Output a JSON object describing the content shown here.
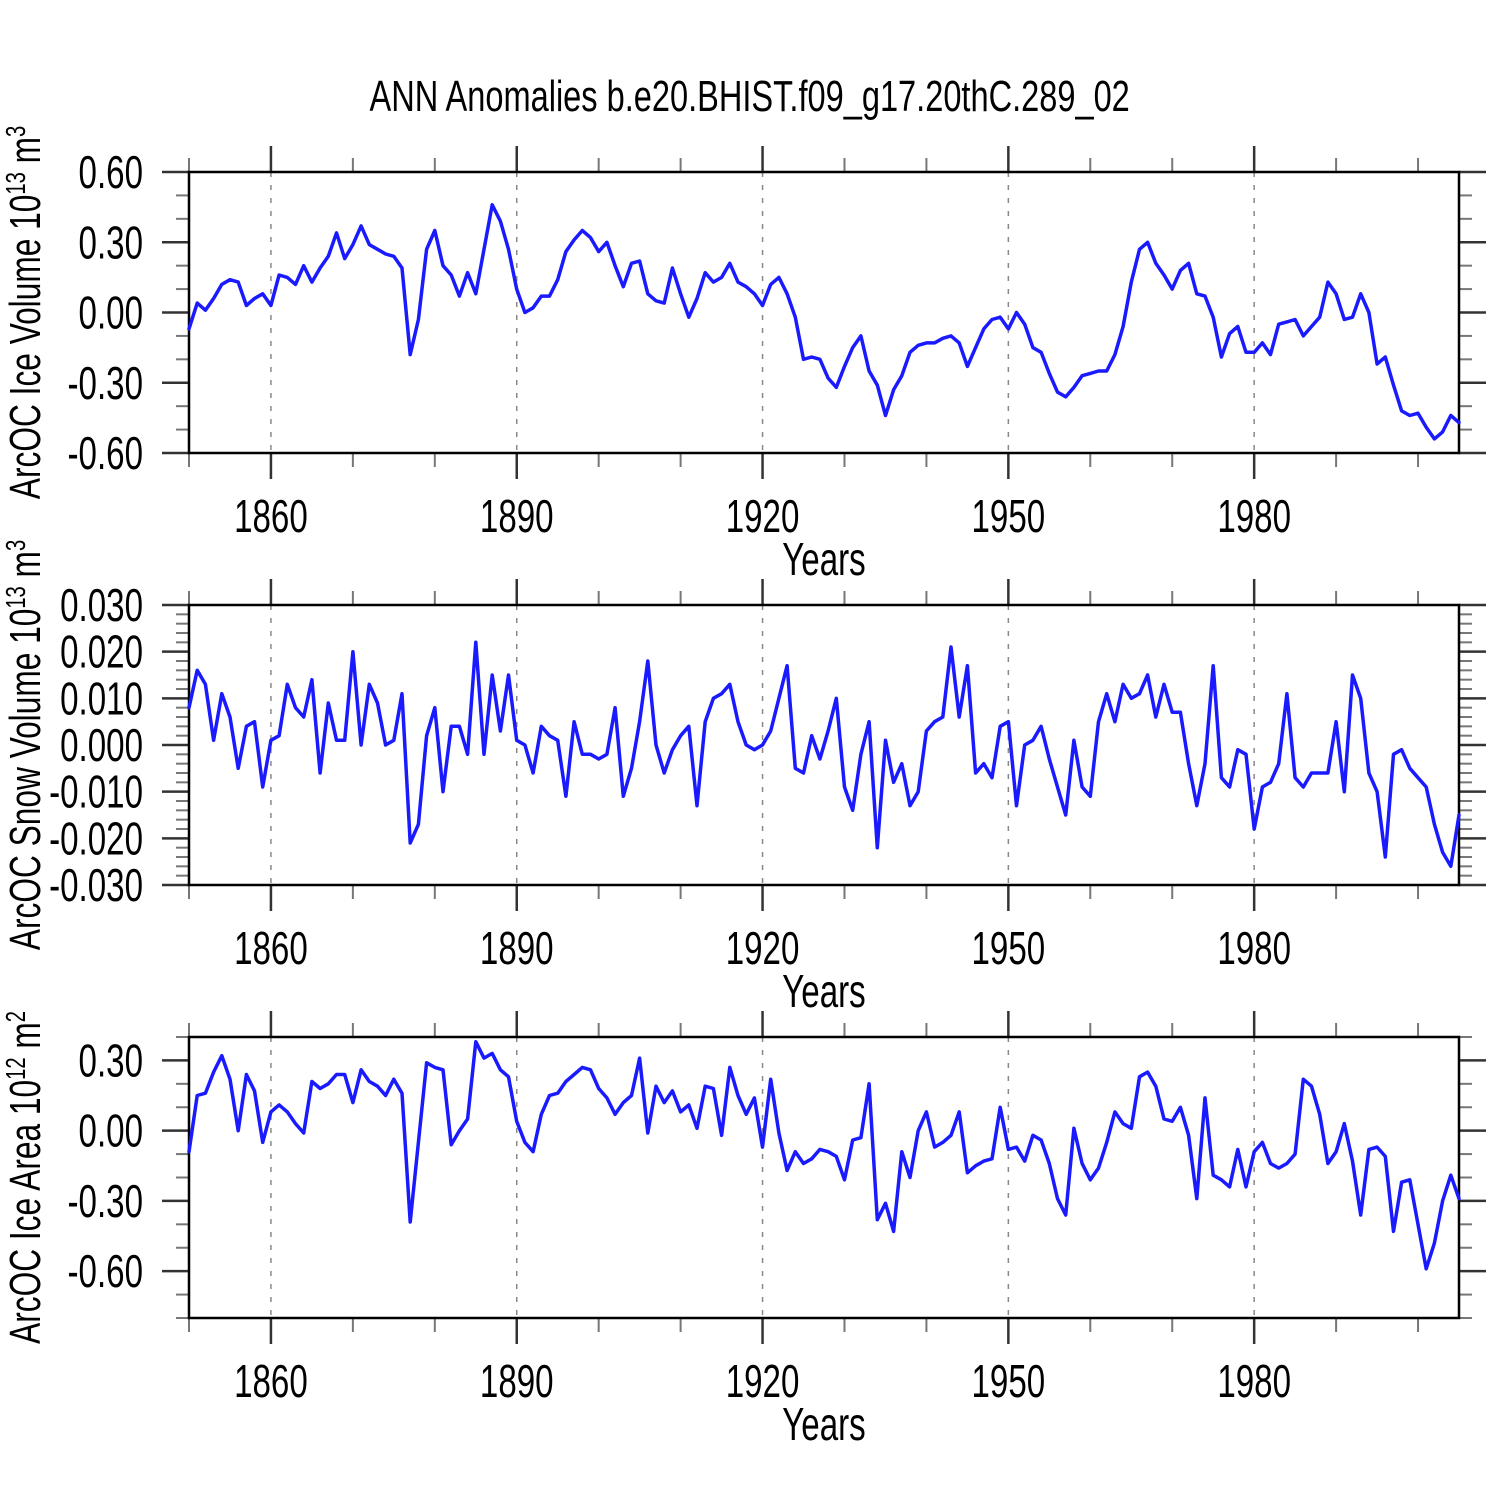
{
  "title": "ANN Anomalies b.e20.BHIST.f09_g17.20thC.289_02",
  "x_axis": {
    "label": "Years",
    "start": 1850,
    "end": 2005,
    "major_ticks": [
      1860,
      1890,
      1920,
      1950,
      1980
    ],
    "minor_step": 10,
    "gridlines_at_major": true
  },
  "colors": {
    "line": "#1a1aff",
    "frame": "#000000",
    "grid": "#888888",
    "major_tick": "#333333",
    "minor_tick": "#777777",
    "text": "#000000",
    "background": "#ffffff"
  },
  "chart_data": [
    {
      "type": "line",
      "title": "",
      "xlabel": "Years",
      "ylabel": "ArcOC Ice Volume 10^13 m^3",
      "ylabel_parts": [
        [
          "ArcOC Ice Volume 10",
          0
        ],
        [
          "13",
          1
        ],
        [
          " m",
          0
        ],
        [
          "3",
          1
        ]
      ],
      "ylim": [
        -0.6,
        0.6
      ],
      "y_major_ticks": [
        0.6,
        0.3,
        0.0,
        -0.3,
        -0.6
      ],
      "y_tick_labels": [
        "0.60",
        "0.30",
        "0.00",
        "-0.30",
        "-0.60"
      ],
      "y_minor_step": 0.1,
      "x_start": 1850,
      "x_step": 1,
      "values": [
        -0.07,
        0.04,
        0.01,
        0.06,
        0.12,
        0.14,
        0.13,
        0.03,
        0.06,
        0.08,
        0.03,
        0.16,
        0.15,
        0.12,
        0.2,
        0.13,
        0.19,
        0.24,
        0.34,
        0.23,
        0.29,
        0.37,
        0.29,
        0.27,
        0.25,
        0.24,
        0.19,
        -0.18,
        -0.03,
        0.27,
        0.35,
        0.2,
        0.16,
        0.07,
        0.17,
        0.08,
        0.27,
        0.46,
        0.39,
        0.27,
        0.1,
        0.0,
        0.02,
        0.07,
        0.07,
        0.14,
        0.26,
        0.31,
        0.35,
        0.32,
        0.26,
        0.3,
        0.2,
        0.11,
        0.21,
        0.22,
        0.08,
        0.05,
        0.04,
        0.19,
        0.08,
        -0.02,
        0.06,
        0.17,
        0.13,
        0.15,
        0.21,
        0.13,
        0.11,
        0.08,
        0.03,
        0.12,
        0.15,
        0.08,
        -0.02,
        -0.2,
        -0.19,
        -0.2,
        -0.28,
        -0.32,
        -0.23,
        -0.15,
        -0.1,
        -0.25,
        -0.31,
        -0.44,
        -0.33,
        -0.27,
        -0.17,
        -0.14,
        -0.13,
        -0.13,
        -0.11,
        -0.1,
        -0.13,
        -0.23,
        -0.15,
        -0.07,
        -0.03,
        -0.02,
        -0.07,
        0.0,
        -0.05,
        -0.15,
        -0.17,
        -0.26,
        -0.34,
        -0.36,
        -0.32,
        -0.27,
        -0.26,
        -0.25,
        -0.25,
        -0.18,
        -0.06,
        0.13,
        0.27,
        0.3,
        0.21,
        0.16,
        0.1,
        0.18,
        0.21,
        0.08,
        0.07,
        -0.02,
        -0.19,
        -0.09,
        -0.06,
        -0.17,
        -0.17,
        -0.13,
        -0.18,
        -0.05,
        -0.04,
        -0.03,
        -0.1,
        -0.06,
        -0.02,
        0.13,
        0.08,
        -0.03,
        -0.02,
        0.08,
        0.0,
        -0.22,
        -0.19,
        -0.31,
        -0.42,
        -0.44,
        -0.43,
        -0.49,
        -0.54,
        -0.51,
        -0.44,
        -0.47
      ]
    },
    {
      "type": "line",
      "title": "",
      "xlabel": "Years",
      "ylabel": "ArcOC Snow Volume 10^13 m^3",
      "ylabel_parts": [
        [
          "ArcOC Snow Volume 10",
          0
        ],
        [
          "13",
          1
        ],
        [
          " m",
          0
        ],
        [
          "3",
          1
        ]
      ],
      "ylim": [
        -0.03,
        0.03
      ],
      "y_major_ticks": [
        0.03,
        0.02,
        0.01,
        0.0,
        -0.01,
        -0.02,
        -0.03
      ],
      "y_tick_labels": [
        "0.030",
        "0.020",
        "0.010",
        "0.000",
        "-0.010",
        "-0.020",
        "-0.030"
      ],
      "y_minor_step": 0.002,
      "x_start": 1850,
      "x_step": 1,
      "values": [
        0.008,
        0.016,
        0.013,
        0.001,
        0.011,
        0.006,
        -0.005,
        0.004,
        0.005,
        -0.009,
        0.001,
        0.002,
        0.013,
        0.008,
        0.006,
        0.014,
        -0.006,
        0.009,
        0.001,
        0.001,
        0.02,
        0.0,
        0.013,
        0.009,
        0.0,
        0.001,
        0.011,
        -0.021,
        -0.017,
        0.002,
        0.008,
        -0.01,
        0.004,
        0.004,
        -0.002,
        0.022,
        -0.002,
        0.015,
        0.003,
        0.015,
        0.001,
        0.0,
        -0.006,
        0.004,
        0.002,
        0.001,
        -0.011,
        0.005,
        -0.002,
        -0.002,
        -0.003,
        -0.002,
        0.008,
        -0.011,
        -0.005,
        0.005,
        0.018,
        0.0,
        -0.006,
        -0.001,
        0.002,
        0.004,
        -0.013,
        0.005,
        0.01,
        0.011,
        0.013,
        0.005,
        0.0,
        -0.001,
        0.0,
        0.003,
        0.01,
        0.017,
        -0.005,
        -0.006,
        0.002,
        -0.003,
        0.003,
        0.01,
        -0.009,
        -0.014,
        -0.002,
        0.005,
        -0.022,
        0.001,
        -0.008,
        -0.004,
        -0.013,
        -0.01,
        0.003,
        0.005,
        0.006,
        0.021,
        0.006,
        0.017,
        -0.006,
        -0.004,
        -0.007,
        0.004,
        0.005,
        -0.013,
        0.0,
        0.001,
        0.004,
        -0.003,
        -0.009,
        -0.015,
        0.001,
        -0.009,
        -0.011,
        0.005,
        0.011,
        0.005,
        0.013,
        0.01,
        0.011,
        0.015,
        0.006,
        0.013,
        0.007,
        0.007,
        -0.004,
        -0.013,
        -0.004,
        0.017,
        -0.007,
        -0.009,
        -0.001,
        -0.002,
        -0.018,
        -0.009,
        -0.008,
        -0.004,
        0.011,
        -0.007,
        -0.009,
        -0.006,
        -0.006,
        -0.006,
        0.005,
        -0.01,
        0.015,
        0.01,
        -0.006,
        -0.01,
        -0.024,
        -0.002,
        -0.001,
        -0.005,
        -0.007,
        -0.009,
        -0.017,
        -0.023,
        -0.026,
        -0.015
      ]
    },
    {
      "type": "line",
      "title": "",
      "xlabel": "Years",
      "ylabel": "ArcOC Ice Area 10^12 m^2",
      "ylabel_parts": [
        [
          "ArcOC Ice Area 10",
          0
        ],
        [
          "12",
          1
        ],
        [
          " m",
          0
        ],
        [
          "2",
          1
        ]
      ],
      "ylim": [
        -0.8,
        0.4
      ],
      "y_major_ticks": [
        0.3,
        0.0,
        -0.3,
        -0.6
      ],
      "y_tick_labels": [
        "0.30",
        "0.00",
        "-0.30",
        "-0.60"
      ],
      "y_minor_step": 0.1,
      "x_start": 1850,
      "x_step": 1,
      "values": [
        -0.09,
        0.15,
        0.16,
        0.25,
        0.32,
        0.22,
        0.0,
        0.24,
        0.17,
        -0.05,
        0.08,
        0.11,
        0.08,
        0.03,
        -0.01,
        0.21,
        0.18,
        0.2,
        0.24,
        0.24,
        0.12,
        0.26,
        0.21,
        0.19,
        0.15,
        0.22,
        0.16,
        -0.39,
        -0.05,
        0.29,
        0.27,
        0.26,
        -0.06,
        0.0,
        0.05,
        0.38,
        0.31,
        0.33,
        0.26,
        0.23,
        0.04,
        -0.05,
        -0.09,
        0.07,
        0.15,
        0.16,
        0.21,
        0.24,
        0.27,
        0.26,
        0.18,
        0.14,
        0.07,
        0.12,
        0.15,
        0.31,
        -0.01,
        0.19,
        0.12,
        0.17,
        0.08,
        0.11,
        0.01,
        0.19,
        0.18,
        -0.02,
        0.27,
        0.15,
        0.07,
        0.14,
        -0.07,
        0.22,
        -0.01,
        -0.17,
        -0.09,
        -0.14,
        -0.12,
        -0.08,
        -0.09,
        -0.11,
        -0.21,
        -0.04,
        -0.03,
        0.2,
        -0.38,
        -0.31,
        -0.43,
        -0.09,
        -0.2,
        0.0,
        0.08,
        -0.07,
        -0.05,
        -0.02,
        0.08,
        -0.18,
        -0.15,
        -0.13,
        -0.12,
        0.1,
        -0.08,
        -0.07,
        -0.13,
        -0.02,
        -0.04,
        -0.14,
        -0.29,
        -0.36,
        0.01,
        -0.14,
        -0.21,
        -0.16,
        -0.05,
        0.08,
        0.03,
        0.01,
        0.23,
        0.25,
        0.19,
        0.05,
        0.04,
        0.1,
        -0.02,
        -0.29,
        0.14,
        -0.19,
        -0.21,
        -0.24,
        -0.08,
        -0.24,
        -0.09,
        -0.05,
        -0.14,
        -0.16,
        -0.14,
        -0.1,
        0.22,
        0.19,
        0.07,
        -0.14,
        -0.09,
        0.03,
        -0.13,
        -0.36,
        -0.08,
        -0.07,
        -0.11,
        -0.43,
        -0.22,
        -0.21,
        -0.4,
        -0.59,
        -0.48,
        -0.3,
        -0.19,
        -0.29
      ]
    }
  ]
}
